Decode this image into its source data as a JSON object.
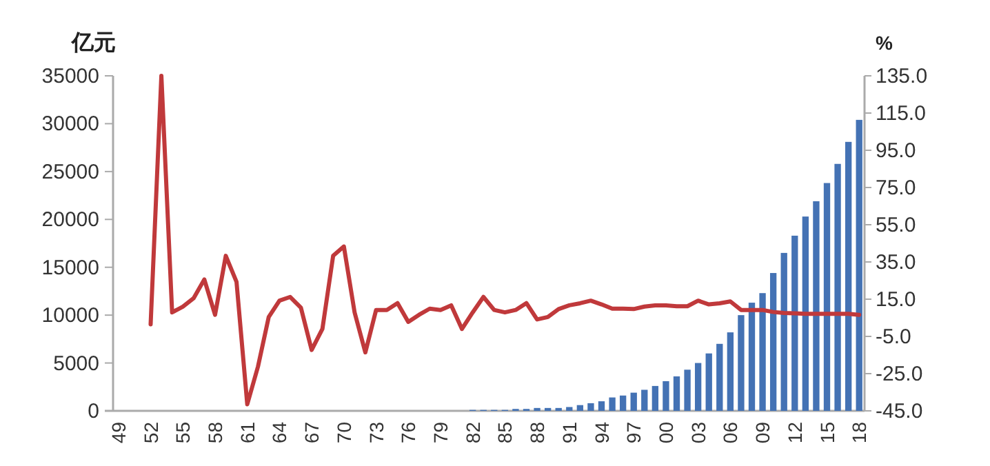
{
  "chart_data": {
    "type": "bar",
    "ylabel": "亿元",
    "y2label": "%",
    "categories": [
      "49",
      null,
      null,
      "52",
      null,
      null,
      "55",
      null,
      null,
      "58",
      null,
      null,
      "61",
      null,
      null,
      "64",
      null,
      null,
      "67",
      null,
      null,
      "70",
      null,
      null,
      "73",
      null,
      null,
      "76",
      null,
      null,
      "79",
      null,
      null,
      "82",
      null,
      null,
      "85",
      null,
      null,
      "88",
      null,
      null,
      "91",
      null,
      null,
      "94",
      null,
      null,
      "97",
      null,
      null,
      "00",
      null,
      null,
      "03",
      null,
      null,
      "06",
      null,
      null,
      "09",
      null,
      null,
      "12",
      null,
      null,
      "15",
      null,
      null,
      "18"
    ],
    "series": [
      {
        "color": "#4472b4",
        "values": [
          null,
          null,
          null,
          null,
          null,
          null,
          null,
          null,
          null,
          null,
          null,
          null,
          null,
          null,
          null,
          null,
          null,
          null,
          null,
          null,
          null,
          null,
          null,
          null,
          null,
          null,
          null,
          null,
          null,
          null,
          null,
          null,
          null,
          100,
          100,
          100,
          100,
          200,
          200,
          300,
          300,
          300,
          400,
          600,
          800,
          1000,
          1400,
          1600,
          1900,
          2200,
          2600,
          3100,
          3600,
          4300,
          5000,
          6000,
          7000,
          8200,
          10000,
          11300,
          12300,
          14400,
          16500,
          18300,
          20300,
          21900,
          23800,
          25800,
          28100,
          30400
        ]
      },
      {
        "type": "line",
        "axis": "y2",
        "color": "#c0393b",
        "values": [
          null,
          null,
          null,
          1.5,
          135,
          7.9,
          11,
          15.5,
          25.6,
          6.6,
          38.3,
          24.3,
          -41.5,
          -21.2,
          5.4,
          14.2,
          16.2,
          10.4,
          -12.3,
          -1,
          38.3,
          43.3,
          7.9,
          -13.6,
          9.2,
          9.2,
          12.9,
          2.8,
          6.6,
          9.9,
          9.2,
          11.7,
          -1,
          7.9,
          16.2,
          9.2,
          7.9,
          9.2,
          12.9,
          4.1,
          5.4,
          9.7,
          11.7,
          12.8,
          14.2,
          12.2,
          9.9,
          9.9,
          9.7,
          11,
          11.7,
          11.7,
          11.2,
          11.2,
          14.2,
          12.2,
          12.8,
          13.8,
          9.2,
          9.2,
          9.2,
          8.1,
          7.6,
          7.4,
          7.1,
          7.1,
          7.1,
          7.1,
          7.1,
          6.6
        ]
      }
    ],
    "ylim": [
      0,
      35000
    ],
    "yticks": [
      0,
      5000,
      10000,
      15000,
      20000,
      25000,
      30000,
      35000
    ],
    "y2lim": [
      -45,
      135
    ],
    "y2ticks": [
      {
        "value": -45,
        "label": "-45.0"
      },
      {
        "value": -25,
        "label": "-25.0"
      },
      {
        "value": -5,
        "label": "-5.0"
      },
      {
        "value": 15,
        "label": "15.0"
      },
      {
        "value": 35,
        "label": "35.0"
      },
      {
        "value": 55,
        "label": "55.0"
      },
      {
        "value": 75,
        "label": "75.0"
      },
      {
        "value": 95,
        "label": "95.0"
      },
      {
        "value": 115,
        "label": "115.0"
      },
      {
        "value": 135,
        "label": "135.0"
      }
    ],
    "grid": false
  }
}
